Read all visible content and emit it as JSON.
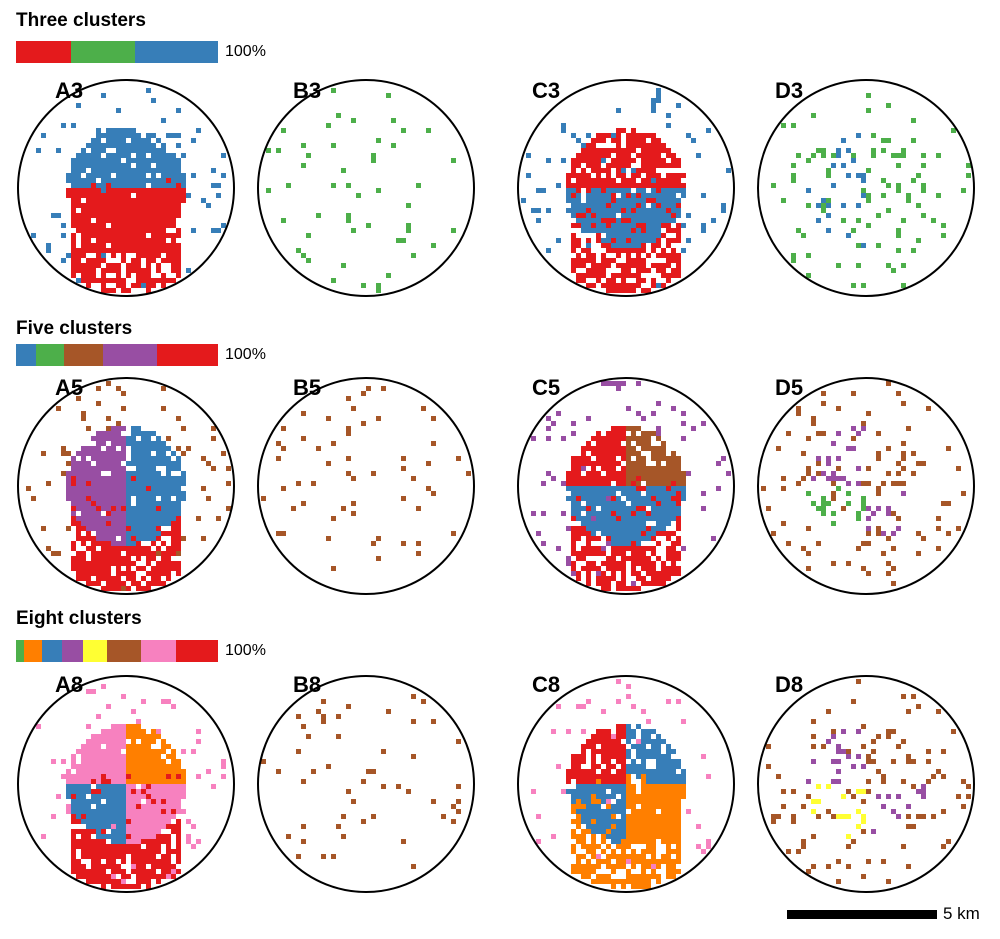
{
  "colors": {
    "red": "#e41a1c",
    "green": "#4daf4a",
    "blue": "#377eb8",
    "brown": "#a65628",
    "purple": "#984ea3",
    "orange": "#ff7f00",
    "yellow": "#ffff33",
    "pink": "#f781bf"
  },
  "sections": [
    {
      "title": "Three clusters",
      "legend_label": "100%",
      "legend": [
        {
          "color": "red",
          "share": 27
        },
        {
          "color": "green",
          "share": 32
        },
        {
          "color": "blue",
          "share": 41
        }
      ],
      "panels": [
        {
          "label": "A3",
          "cover": "red",
          "big": [
            "blue",
            "blue",
            "red",
            "red"
          ],
          "scatter": "blue"
        },
        {
          "label": "B3",
          "cover": "",
          "big": [],
          "scatter": "green"
        },
        {
          "label": "C3",
          "cover": "red",
          "big": [
            "red",
            "red",
            "blue",
            "blue"
          ],
          "scatter": "blue"
        },
        {
          "label": "D3",
          "cover": "",
          "big": [
            "blue",
            "green"
          ],
          "scatter": "green"
        }
      ]
    },
    {
      "title": "Five clusters",
      "legend_label": "100%",
      "legend": [
        {
          "color": "blue",
          "share": 10
        },
        {
          "color": "green",
          "share": 14
        },
        {
          "color": "brown",
          "share": 19
        },
        {
          "color": "purple",
          "share": 27
        },
        {
          "color": "red",
          "share": 30
        }
      ],
      "panels": [
        {
          "label": "A5",
          "cover": "red",
          "big": [
            "purple",
            "blue",
            "purple",
            "blue"
          ],
          "scatter": "brown"
        },
        {
          "label": "B5",
          "cover": "",
          "big": [],
          "scatter": "brown"
        },
        {
          "label": "C5",
          "cover": "red",
          "big": [
            "red",
            "brown",
            "blue",
            "blue"
          ],
          "scatter": "purple"
        },
        {
          "label": "D5",
          "cover": "",
          "big": [
            "purple",
            "brown",
            "green"
          ],
          "scatter": "brown"
        }
      ]
    },
    {
      "title": "Eight clusters",
      "legend_label": "100%",
      "legend": [
        {
          "color": "green",
          "share": 4
        },
        {
          "color": "orange",
          "share": 9
        },
        {
          "color": "blue",
          "share": 10
        },
        {
          "color": "purple",
          "share": 10
        },
        {
          "color": "yellow",
          "share": 12
        },
        {
          "color": "brown",
          "share": 17
        },
        {
          "color": "pink",
          "share": 17
        },
        {
          "color": "red",
          "share": 21
        }
      ],
      "panels": [
        {
          "label": "A8",
          "cover": "red",
          "big": [
            "pink",
            "orange",
            "blue",
            "pink"
          ],
          "scatter": "pink"
        },
        {
          "label": "B8",
          "cover": "",
          "big": [],
          "scatter": "brown"
        },
        {
          "label": "C8",
          "cover": "orange",
          "big": [
            "red",
            "blue",
            "blue",
            "orange"
          ],
          "scatter": "pink"
        },
        {
          "label": "D8",
          "cover": "",
          "big": [
            "purple",
            "brown",
            "yellow"
          ],
          "scatter": "brown"
        }
      ]
    }
  ],
  "scale": {
    "label": "5 km"
  }
}
